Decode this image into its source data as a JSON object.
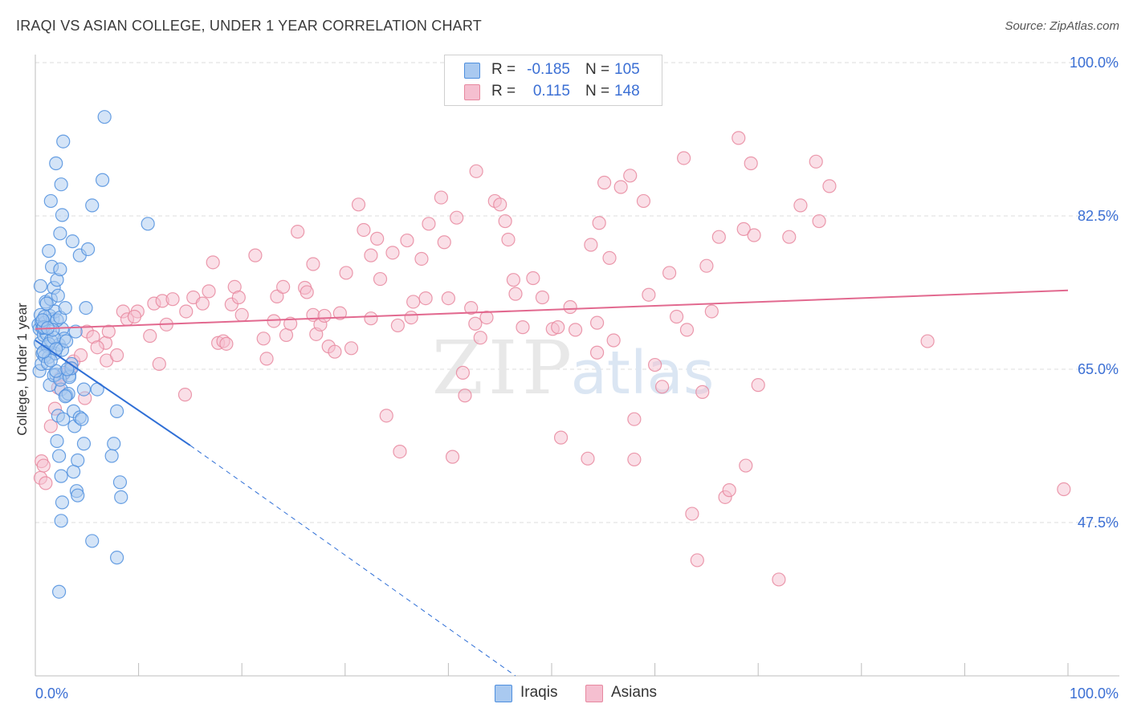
{
  "title": "IRAQI VS ASIAN COLLEGE, UNDER 1 YEAR CORRELATION CHART",
  "source": "Source: ZipAtlas.com",
  "watermark": {
    "zip": "ZIP",
    "atlas": "atlas"
  },
  "colors": {
    "blue_fill": "#a9c9f0",
    "blue_stroke": "#4f8fde",
    "blue_line": "#2f6fd6",
    "pink_fill": "#f5bfd0",
    "pink_stroke": "#e7889f",
    "pink_line": "#e2698f",
    "tick_text": "#3b6fd4",
    "grid": "#dcdcdc"
  },
  "stats": [
    {
      "r_label": "R =",
      "r_value": "-0.185",
      "n_label": "N =",
      "n_value": "105",
      "series": "Iraqis"
    },
    {
      "r_label": "R =",
      "r_value": "0.115",
      "n_label": "N =",
      "n_value": "148",
      "series": "Asians"
    }
  ],
  "legend": [
    "Iraqis",
    "Asians"
  ],
  "chart_data": {
    "type": "scatter",
    "title": "IRAQI VS ASIAN COLLEGE, UNDER 1 YEAR CORRELATION CHART",
    "xlabel": "",
    "ylabel": "College, Under 1 year",
    "xlim": [
      0,
      100
    ],
    "ylim": [
      30,
      100
    ],
    "x_tick_labels": [
      "0.0%",
      "100.0%"
    ],
    "y_ticks": [
      47.5,
      65.0,
      82.5,
      100.0
    ],
    "y_tick_labels": [
      "47.5%",
      "65.0%",
      "82.5%",
      "100.0%"
    ],
    "grid": true,
    "series": [
      {
        "name": "Iraqis",
        "r": -0.185,
        "n": 105,
        "trend": {
          "x0": 0.0,
          "y0": 68.3,
          "x1": 15.0,
          "y1": 56.3,
          "dash_to_x": 46.5,
          "dash_to_y": 30.0
        },
        "points": [
          [
            0.3,
            70.1
          ],
          [
            0.4,
            69.6
          ],
          [
            0.5,
            68.0
          ],
          [
            0.6,
            70.4
          ],
          [
            0.5,
            71.2
          ],
          [
            0.7,
            66.8
          ],
          [
            0.4,
            64.8
          ],
          [
            0.8,
            68.9
          ],
          [
            0.9,
            70.3
          ],
          [
            1.1,
            69.0
          ],
          [
            1.2,
            67.6
          ],
          [
            1.3,
            66.4
          ],
          [
            0.6,
            65.6
          ],
          [
            1.0,
            72.7
          ],
          [
            1.4,
            71.1
          ],
          [
            1.7,
            70.7
          ],
          [
            1.5,
            73.0
          ],
          [
            1.8,
            74.3
          ],
          [
            1.9,
            71.6
          ],
          [
            2.2,
            73.4
          ],
          [
            2.1,
            75.2
          ],
          [
            1.6,
            76.7
          ],
          [
            2.4,
            76.4
          ],
          [
            1.9,
            66.8
          ],
          [
            2.3,
            67.8
          ],
          [
            2.0,
            64.4
          ],
          [
            2.6,
            69.6
          ],
          [
            2.8,
            68.5
          ],
          [
            2.5,
            62.7
          ],
          [
            3.0,
            62.0
          ],
          [
            3.3,
            64.3
          ],
          [
            2.8,
            64.6
          ],
          [
            3.5,
            65.6
          ],
          [
            1.4,
            63.2
          ],
          [
            2.2,
            59.7
          ],
          [
            2.7,
            59.3
          ],
          [
            3.8,
            58.5
          ],
          [
            3.7,
            60.2
          ],
          [
            4.3,
            59.5
          ],
          [
            4.5,
            59.3
          ],
          [
            2.1,
            56.8
          ],
          [
            2.3,
            55.1
          ],
          [
            4.7,
            56.5
          ],
          [
            4.1,
            54.6
          ],
          [
            3.7,
            53.3
          ],
          [
            2.5,
            52.8
          ],
          [
            4.0,
            51.1
          ],
          [
            4.1,
            50.6
          ],
          [
            2.6,
            49.8
          ],
          [
            2.5,
            47.7
          ],
          [
            4.7,
            62.7
          ],
          [
            6.0,
            62.7
          ],
          [
            7.9,
            60.2
          ],
          [
            7.6,
            56.5
          ],
          [
            7.4,
            55.1
          ],
          [
            8.2,
            52.1
          ],
          [
            8.3,
            50.4
          ],
          [
            5.5,
            45.4
          ],
          [
            7.9,
            43.5
          ],
          [
            2.3,
            39.6
          ],
          [
            1.3,
            78.5
          ],
          [
            2.4,
            80.5
          ],
          [
            3.6,
            79.6
          ],
          [
            4.3,
            78.0
          ],
          [
            5.1,
            78.7
          ],
          [
            2.6,
            82.6
          ],
          [
            5.5,
            83.7
          ],
          [
            1.5,
            84.2
          ],
          [
            2.5,
            86.1
          ],
          [
            2.0,
            88.5
          ],
          [
            6.5,
            86.6
          ],
          [
            2.7,
            91.0
          ],
          [
            6.7,
            93.8
          ],
          [
            10.9,
            81.6
          ],
          [
            1.8,
            64.3
          ],
          [
            2.4,
            63.8
          ],
          [
            3.3,
            64.1
          ],
          [
            2.0,
            64.8
          ],
          [
            3.2,
            62.2
          ],
          [
            0.7,
            69.7
          ],
          [
            0.9,
            71.0
          ],
          [
            1.5,
            68.3
          ],
          [
            2.6,
            67.2
          ],
          [
            3.0,
            68.2
          ],
          [
            0.8,
            69.8
          ],
          [
            1.3,
            67.9
          ],
          [
            1.8,
            68.6
          ],
          [
            2.1,
            70.6
          ],
          [
            3.5,
            65.1
          ],
          [
            3.1,
            65.0
          ],
          [
            0.9,
            66.5
          ],
          [
            1.2,
            65.7
          ],
          [
            0.5,
            74.5
          ],
          [
            1.1,
            72.5
          ],
          [
            2.4,
            70.9
          ],
          [
            2.9,
            72.0
          ],
          [
            1.7,
            69.5
          ],
          [
            3.9,
            69.3
          ],
          [
            4.9,
            72.0
          ],
          [
            0.7,
            70.6
          ],
          [
            1.2,
            69.7
          ],
          [
            2.0,
            67.3
          ],
          [
            1.5,
            66.0
          ],
          [
            0.8,
            67.0
          ],
          [
            2.9,
            61.9
          ]
        ]
      },
      {
        "name": "Asians",
        "r": 0.115,
        "n": 148,
        "trend": {
          "x0": 0.0,
          "y0": 69.6,
          "x1": 100.0,
          "y1": 74.0
        },
        "points": [
          [
            0.6,
            54.5
          ],
          [
            0.5,
            52.6
          ],
          [
            1.5,
            58.5
          ],
          [
            1.9,
            60.5
          ],
          [
            2.2,
            62.9
          ],
          [
            2.7,
            64.4
          ],
          [
            3.7,
            65.9
          ],
          [
            4.4,
            66.6
          ],
          [
            5.0,
            69.3
          ],
          [
            5.6,
            68.7
          ],
          [
            6.8,
            68.0
          ],
          [
            6.9,
            66.0
          ],
          [
            7.9,
            66.6
          ],
          [
            8.5,
            71.6
          ],
          [
            8.9,
            70.7
          ],
          [
            9.9,
            71.6
          ],
          [
            11.1,
            68.8
          ],
          [
            11.5,
            72.5
          ],
          [
            12.0,
            65.6
          ],
          [
            12.3,
            72.8
          ],
          [
            12.7,
            70.1
          ],
          [
            13.3,
            73.0
          ],
          [
            14.6,
            71.6
          ],
          [
            14.5,
            62.1
          ],
          [
            15.3,
            73.2
          ],
          [
            16.2,
            72.5
          ],
          [
            16.8,
            73.9
          ],
          [
            17.2,
            77.2
          ],
          [
            17.7,
            68.0
          ],
          [
            18.2,
            68.2
          ],
          [
            19.0,
            72.4
          ],
          [
            19.3,
            74.4
          ],
          [
            19.7,
            73.2
          ],
          [
            20.0,
            71.2
          ],
          [
            21.3,
            78.0
          ],
          [
            22.1,
            68.5
          ],
          [
            22.4,
            66.2
          ],
          [
            23.1,
            70.5
          ],
          [
            23.4,
            73.3
          ],
          [
            24.0,
            74.4
          ],
          [
            24.3,
            68.9
          ],
          [
            24.7,
            70.2
          ],
          [
            25.4,
            80.7
          ],
          [
            26.1,
            74.3
          ],
          [
            26.3,
            73.8
          ],
          [
            26.9,
            71.2
          ],
          [
            26.9,
            77.0
          ],
          [
            27.2,
            69.0
          ],
          [
            27.6,
            70.1
          ],
          [
            28.0,
            71.1
          ],
          [
            28.4,
            67.6
          ],
          [
            29.0,
            67.0
          ],
          [
            29.5,
            71.4
          ],
          [
            30.1,
            76.0
          ],
          [
            30.6,
            67.4
          ],
          [
            31.3,
            83.8
          ],
          [
            31.8,
            80.9
          ],
          [
            32.5,
            78.0
          ],
          [
            32.5,
            70.8
          ],
          [
            33.1,
            79.9
          ],
          [
            33.4,
            75.3
          ],
          [
            34.0,
            59.7
          ],
          [
            34.6,
            78.3
          ],
          [
            35.1,
            70.0
          ],
          [
            35.3,
            55.6
          ],
          [
            36.0,
            79.7
          ],
          [
            36.4,
            70.9
          ],
          [
            36.6,
            72.7
          ],
          [
            37.4,
            77.6
          ],
          [
            37.8,
            73.1
          ],
          [
            38.1,
            81.6
          ],
          [
            39.3,
            84.6
          ],
          [
            39.6,
            79.5
          ],
          [
            40.0,
            73.1
          ],
          [
            40.4,
            55.0
          ],
          [
            40.8,
            82.3
          ],
          [
            41.4,
            64.6
          ],
          [
            41.6,
            62.0
          ],
          [
            42.2,
            72.0
          ],
          [
            42.6,
            70.2
          ],
          [
            42.7,
            87.6
          ],
          [
            43.1,
            68.6
          ],
          [
            43.7,
            70.9
          ],
          [
            44.5,
            84.2
          ],
          [
            45.0,
            83.8
          ],
          [
            45.5,
            81.9
          ],
          [
            45.8,
            79.8
          ],
          [
            46.3,
            75.2
          ],
          [
            46.5,
            73.6
          ],
          [
            47.2,
            69.8
          ],
          [
            48.2,
            75.4
          ],
          [
            49.1,
            73.2
          ],
          [
            50.1,
            69.6
          ],
          [
            50.6,
            69.8
          ],
          [
            50.9,
            57.2
          ],
          [
            51.8,
            72.1
          ],
          [
            52.3,
            69.5
          ],
          [
            53.5,
            54.8
          ],
          [
            53.8,
            79.2
          ],
          [
            54.4,
            70.3
          ],
          [
            54.4,
            66.9
          ],
          [
            54.6,
            81.7
          ],
          [
            55.1,
            86.3
          ],
          [
            55.6,
            77.7
          ],
          [
            56.0,
            68.3
          ],
          [
            56.7,
            85.8
          ],
          [
            57.6,
            87.1
          ],
          [
            58.0,
            54.7
          ],
          [
            58.0,
            59.3
          ],
          [
            58.9,
            84.2
          ],
          [
            59.4,
            73.5
          ],
          [
            60.0,
            65.5
          ],
          [
            60.7,
            63.0
          ],
          [
            61.4,
            76.0
          ],
          [
            62.1,
            71.0
          ],
          [
            62.8,
            89.1
          ],
          [
            63.1,
            69.5
          ],
          [
            63.6,
            48.5
          ],
          [
            64.1,
            43.2
          ],
          [
            64.6,
            62.4
          ],
          [
            65.0,
            76.8
          ],
          [
            65.5,
            71.6
          ],
          [
            66.2,
            80.1
          ],
          [
            66.8,
            50.4
          ],
          [
            67.2,
            51.2
          ],
          [
            68.1,
            91.4
          ],
          [
            68.6,
            81.0
          ],
          [
            68.8,
            54.0
          ],
          [
            69.3,
            88.5
          ],
          [
            69.6,
            80.3
          ],
          [
            70.0,
            63.2
          ],
          [
            72.0,
            41.0
          ],
          [
            73.0,
            80.1
          ],
          [
            74.1,
            83.7
          ],
          [
            75.6,
            88.7
          ],
          [
            75.9,
            81.9
          ],
          [
            76.9,
            85.9
          ],
          [
            0.8,
            54.0
          ],
          [
            1.0,
            52.0
          ],
          [
            2.4,
            64.0
          ],
          [
            3.4,
            65.1
          ],
          [
            4.8,
            61.7
          ],
          [
            6.0,
            67.5
          ],
          [
            7.1,
            69.3
          ],
          [
            9.6,
            71.0
          ],
          [
            18.5,
            67.9
          ],
          [
            86.4,
            68.2
          ],
          [
            99.6,
            51.3
          ]
        ]
      }
    ]
  }
}
